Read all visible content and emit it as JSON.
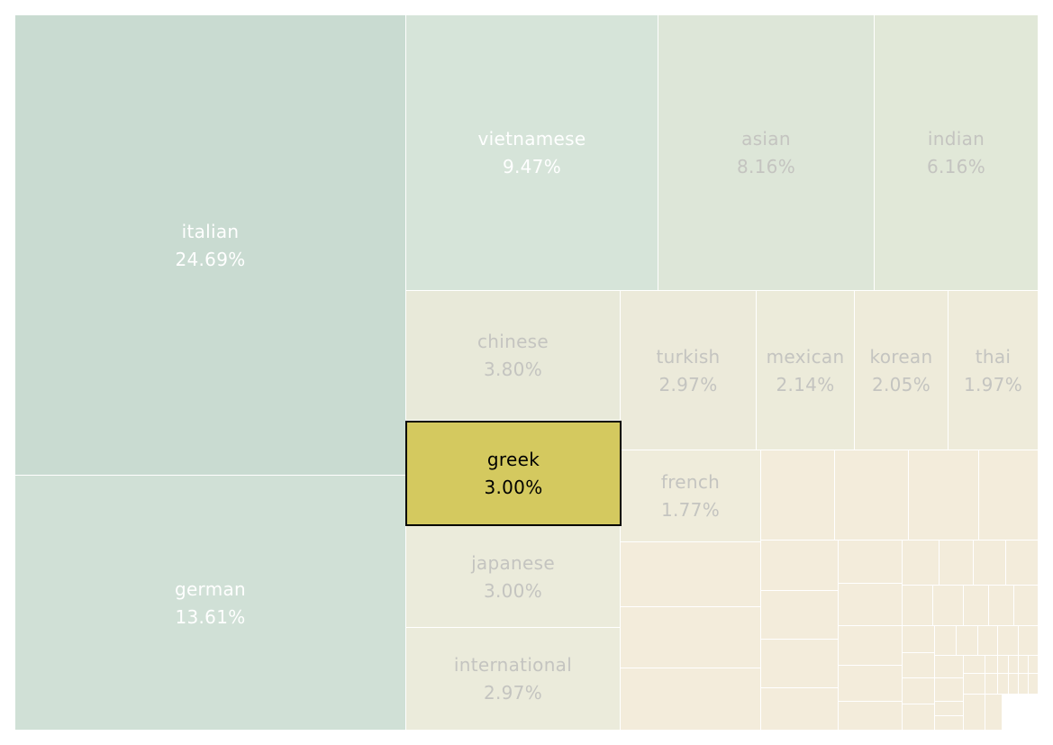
{
  "chart_data": {
    "type": "treemap",
    "title": "",
    "value_format": "percent",
    "colors": {
      "label_light": "#ffffff",
      "label_dim": "#c4c4c0",
      "label_highlight": "#000000",
      "highlight_fill": "#d4c95f",
      "highlight_border": "#000000"
    },
    "items": [
      {
        "name": "italian",
        "value": 24.69,
        "label": "italian",
        "value_label": "24.69%",
        "color": "#c9dbd1",
        "label_tone": "light"
      },
      {
        "name": "german",
        "value": 13.61,
        "label": "german",
        "value_label": "13.61%",
        "color": "#d0e0d6",
        "label_tone": "light"
      },
      {
        "name": "vietnamese",
        "value": 9.47,
        "label": "vietnamese",
        "value_label": "9.47%",
        "color": "#d6e4d9",
        "label_tone": "light"
      },
      {
        "name": "asian",
        "value": 8.16,
        "label": "asian",
        "value_label": "8.16%",
        "color": "#dde6d8",
        "label_tone": "dim"
      },
      {
        "name": "indian",
        "value": 6.16,
        "label": "indian",
        "value_label": "6.16%",
        "color": "#e1e8d8",
        "label_tone": "dim"
      },
      {
        "name": "chinese",
        "value": 3.8,
        "label": "chinese",
        "value_label": "3.80%",
        "color": "#e8e9d9",
        "label_tone": "dim"
      },
      {
        "name": "greek",
        "value": 3.0,
        "label": "greek",
        "value_label": "3.00%",
        "color": "#d4c95f",
        "label_tone": "highlight",
        "highlighted": true
      },
      {
        "name": "japanese",
        "value": 3.0,
        "label": "japanese",
        "value_label": "3.00%",
        "color": "#ebebdb",
        "label_tone": "dim"
      },
      {
        "name": "international",
        "value": 2.97,
        "label": "international",
        "value_label": "2.97%",
        "color": "#ebebdb",
        "label_tone": "dim"
      },
      {
        "name": "turkish",
        "value": 2.97,
        "label": "turkish",
        "value_label": "2.97%",
        "color": "#eceada",
        "label_tone": "dim"
      },
      {
        "name": "mexican",
        "value": 2.14,
        "label": "mexican",
        "value_label": "2.14%",
        "color": "#ecebda",
        "label_tone": "dim"
      },
      {
        "name": "korean",
        "value": 2.05,
        "label": "korean",
        "value_label": "2.05%",
        "color": "#eeebda",
        "label_tone": "dim"
      },
      {
        "name": "thai",
        "value": 1.97,
        "label": "thai",
        "value_label": "1.97%",
        "color": "#eeebda",
        "label_tone": "dim"
      },
      {
        "name": "french",
        "value": 1.77,
        "label": "french",
        "value_label": "1.77%",
        "color": "#efecdb",
        "label_tone": "dim"
      }
    ],
    "unlabeled_cells_count": 52,
    "unlabeled_color": "#f3ecdb"
  }
}
